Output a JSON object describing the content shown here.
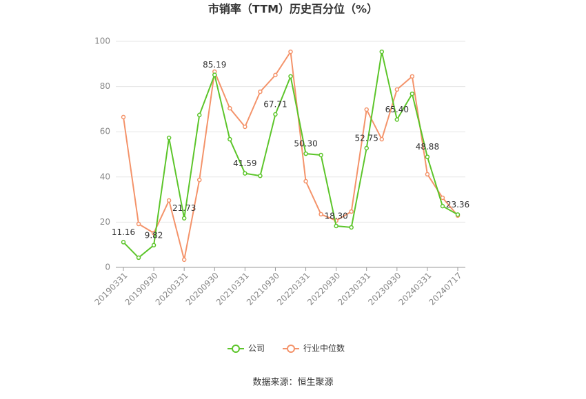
{
  "chart_data": {
    "type": "line",
    "title": "市销率（TTM）历史百分位（%）",
    "categories": [
      "20190331",
      null,
      "20190930",
      null,
      "20200331",
      null,
      "20200930",
      null,
      "20210331",
      null,
      "20210930",
      null,
      "20220331",
      null,
      "20220930",
      null,
      "20230331",
      null,
      "20230930",
      null,
      "20240331",
      null,
      "20240717"
    ],
    "series": [
      {
        "name": "公司",
        "color": "#5cc52a",
        "values": [
          11.16,
          4.3,
          9.82,
          57.3,
          21.73,
          67.4,
          85.19,
          56.7,
          41.59,
          40.5,
          67.71,
          84.5,
          50.3,
          49.7,
          18.3,
          17.7,
          52.75,
          95.4,
          65.4,
          76.8,
          48.88,
          27.1,
          23.36
        ],
        "value_labels": [
          "11.16",
          null,
          "9.82",
          null,
          "21.73",
          null,
          "85.19",
          null,
          "41.59",
          null,
          "67.71",
          null,
          "50.30",
          null,
          "18.30",
          null,
          "52.75",
          null,
          "65.40",
          null,
          "48.88",
          null,
          "23.36"
        ]
      },
      {
        "name": "行业中位数",
        "color": "#f4936a",
        "values": [
          66.5,
          19.2,
          15.2,
          29.6,
          3.4,
          38.7,
          86.6,
          70.4,
          62.2,
          77.7,
          85.1,
          95.4,
          38.1,
          23.5,
          20.7,
          24.7,
          69.8,
          56.7,
          78.7,
          84.5,
          41.2,
          30.8,
          22.9
        ]
      }
    ],
    "ylim": [
      0,
      100
    ],
    "yticks": [
      0,
      20,
      40,
      60,
      80,
      100
    ],
    "grid": true,
    "legend": "bottom",
    "source": "数据来源：恒生聚源"
  }
}
